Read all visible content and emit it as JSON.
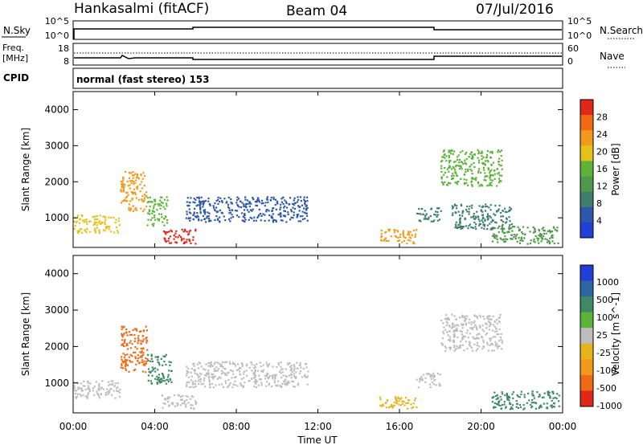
{
  "header": {
    "station": "Hankasalmi (fitACF)",
    "beam": "Beam 04",
    "date": "07/Jul/2016"
  },
  "noise_panel": {
    "left_label": "N.Sky",
    "right_label": "N.Search",
    "left_ticks": [
      "10^5",
      "10^0"
    ],
    "right_ticks": [
      "10^5",
      "10^0"
    ]
  },
  "freq_panel": {
    "left_label_1": "Freq.",
    "left_label_2": "[MHz]",
    "right_label": "Nave",
    "left_ticks": [
      "18",
      "8"
    ],
    "right_ticks": [
      "60",
      "0"
    ]
  },
  "cpid_panel": {
    "label": "CPID",
    "text": "normal (fast stereo) 153"
  },
  "colors": {
    "power": [
      "#1f3fd8",
      "#2d57a8",
      "#3f7e6a",
      "#4f9a4a",
      "#5db33a",
      "#e5c21a",
      "#f39a1c",
      "#f06a16",
      "#e2271a"
    ],
    "velocity_pos": [
      "#1f3fd8",
      "#2d66a0",
      "#3f8a64",
      "#5bb33a"
    ],
    "velocity_gray": "#bdbdbd",
    "velocity_neg": [
      "#e5b31a",
      "#f39a1c",
      "#f06a16",
      "#e2271a"
    ]
  },
  "chart_data": [
    {
      "type": "heatmap",
      "name": "power",
      "ylabel": "Slant Range [km]",
      "colorbar_label": "Power [dB]",
      "colorbar_ticks": [
        "28",
        "24",
        "20",
        "16",
        "12",
        "8",
        "4"
      ],
      "ylim": [
        180,
        4500
      ],
      "yticks": [
        "4000",
        "3000",
        "2000",
        "1000"
      ],
      "xticks": [
        "00:00",
        "04:00",
        "08:00",
        "12:00",
        "16:00",
        "20:00",
        "00:00"
      ],
      "xlim_hours": [
        0,
        24
      ],
      "regions": [
        {
          "t0": 0.0,
          "t1": 2.3,
          "r0": 600,
          "r1": 1100,
          "level": 5
        },
        {
          "t0": 2.3,
          "t1": 3.6,
          "r0": 1200,
          "r1": 2300,
          "level": 6
        },
        {
          "t0": 3.6,
          "t1": 4.6,
          "r0": 800,
          "r1": 1600,
          "level": 4
        },
        {
          "t0": 4.3,
          "t1": 6.0,
          "r0": 300,
          "r1": 700,
          "level": 8
        },
        {
          "t0": 5.5,
          "t1": 11.5,
          "r0": 900,
          "r1": 1600,
          "level": 1
        },
        {
          "t0": 15.0,
          "t1": 16.8,
          "r0": 300,
          "r1": 700,
          "level": 6
        },
        {
          "t0": 16.8,
          "t1": 18.0,
          "r0": 900,
          "r1": 1300,
          "level": 2
        },
        {
          "t0": 18.0,
          "t1": 21.0,
          "r0": 1900,
          "r1": 2900,
          "level": 4
        },
        {
          "t0": 18.5,
          "t1": 21.5,
          "r0": 700,
          "r1": 1400,
          "level": 2
        },
        {
          "t0": 20.5,
          "t1": 23.8,
          "r0": 300,
          "r1": 800,
          "level": 3
        }
      ]
    },
    {
      "type": "heatmap",
      "name": "velocity",
      "ylabel": "Slant Range [km]",
      "colorbar_label": "Velocity [m s^-1]",
      "colorbar_ticks": [
        "1000",
        "500",
        "100",
        "25",
        "-25",
        "-100",
        "-500",
        "-1000"
      ],
      "ylim": [
        180,
        4500
      ],
      "yticks": [
        "4000",
        "3000",
        "2000",
        "1000"
      ],
      "xticks": [
        "00:00",
        "04:00",
        "08:00",
        "12:00",
        "16:00",
        "20:00",
        "00:00"
      ],
      "xlabel": "Time UT",
      "xlim_hours": [
        0,
        24
      ],
      "regions": [
        {
          "t0": 0.0,
          "t1": 2.3,
          "r0": 600,
          "r1": 1100,
          "v": 0
        },
        {
          "t0": 2.3,
          "t1": 3.6,
          "r0": 1300,
          "r1": 2600,
          "v": -500
        },
        {
          "t0": 3.6,
          "t1": 4.8,
          "r0": 1000,
          "r1": 1800,
          "v": 300
        },
        {
          "t0": 4.3,
          "t1": 6.0,
          "r0": 300,
          "r1": 700,
          "v": 0
        },
        {
          "t0": 5.5,
          "t1": 11.5,
          "r0": 900,
          "r1": 1600,
          "v": 0
        },
        {
          "t0": 15.0,
          "t1": 16.8,
          "r0": 300,
          "r1": 650,
          "v": -80
        },
        {
          "t0": 16.8,
          "t1": 18.0,
          "r0": 900,
          "r1": 1300,
          "v": 0
        },
        {
          "t0": 18.0,
          "t1": 21.0,
          "r0": 1900,
          "r1": 2900,
          "v": 0
        },
        {
          "t0": 20.5,
          "t1": 23.8,
          "r0": 300,
          "r1": 800,
          "v": 120
        }
      ]
    }
  ]
}
